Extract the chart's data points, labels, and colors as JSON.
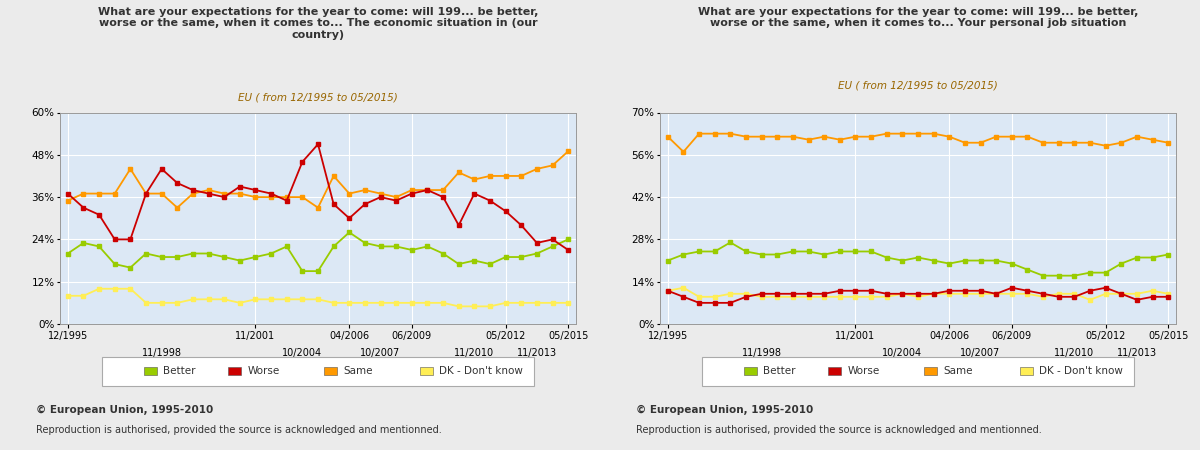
{
  "chart1": {
    "title": "What are your expectations for the year to come: will 199... be better,\nworse or the same, when it comes to... The economic situation in (our\ncountry)",
    "subtitle": "EU ( from 12/1995 to 05/2015)",
    "ylim": [
      0,
      0.6
    ],
    "yticks": [
      0,
      0.12,
      0.24,
      0.36,
      0.48,
      0.6
    ],
    "ytick_labels": [
      "0%",
      "12%",
      "24%",
      "36%",
      "48%",
      "60%"
    ],
    "xtick_positions": [
      0,
      6,
      12,
      18,
      21,
      24,
      27,
      29,
      31,
      33,
      38
    ],
    "xtick_labels": [
      "12/1995",
      "11/1998",
      "11/2001",
      "10/2004",
      "04/2006",
      "10/2007",
      "06/2009",
      "11/2010",
      "05/2012",
      "11/2013",
      "05/2015"
    ],
    "xtick2_positions": [
      3,
      9,
      15,
      19.5,
      22.5,
      25.5,
      28,
      30,
      32,
      35.5
    ],
    "xtick2_labels": [
      "11/1998",
      "10/2004",
      "10/2007",
      "11/2010",
      "11/2013",
      "",
      "",
      "",
      "",
      ""
    ],
    "better": [
      0.2,
      0.23,
      0.22,
      0.17,
      0.16,
      0.2,
      0.19,
      0.19,
      0.2,
      0.2,
      0.19,
      0.18,
      0.19,
      0.2,
      0.22,
      0.15,
      0.15,
      0.22,
      0.26,
      0.23,
      0.22,
      0.22,
      0.21,
      0.22,
      0.2,
      0.17,
      0.18,
      0.17,
      0.19,
      0.19,
      0.2,
      0.22,
      0.24
    ],
    "worse": [
      0.37,
      0.33,
      0.31,
      0.24,
      0.24,
      0.37,
      0.44,
      0.4,
      0.38,
      0.37,
      0.36,
      0.39,
      0.38,
      0.37,
      0.35,
      0.46,
      0.51,
      0.34,
      0.3,
      0.34,
      0.36,
      0.35,
      0.37,
      0.38,
      0.36,
      0.28,
      0.37,
      0.35,
      0.32,
      0.28,
      0.23,
      0.24,
      0.21
    ],
    "same": [
      0.35,
      0.37,
      0.37,
      0.37,
      0.44,
      0.37,
      0.37,
      0.33,
      0.37,
      0.38,
      0.37,
      0.37,
      0.36,
      0.36,
      0.36,
      0.36,
      0.33,
      0.42,
      0.37,
      0.38,
      0.37,
      0.36,
      0.38,
      0.38,
      0.38,
      0.43,
      0.41,
      0.42,
      0.42,
      0.42,
      0.44,
      0.45,
      0.49
    ],
    "dk": [
      0.08,
      0.08,
      0.1,
      0.1,
      0.1,
      0.06,
      0.06,
      0.06,
      0.07,
      0.07,
      0.07,
      0.06,
      0.07,
      0.07,
      0.07,
      0.07,
      0.07,
      0.06,
      0.06,
      0.06,
      0.06,
      0.06,
      0.06,
      0.06,
      0.06,
      0.05,
      0.05,
      0.05,
      0.06,
      0.06,
      0.06,
      0.06,
      0.06
    ]
  },
  "chart2": {
    "title": "What are your expectations for the year to come: will 199... be better,\nworse or the same, when it comes to... Your personal job situation",
    "subtitle": "EU ( from 12/1995 to 05/2015)",
    "ylim": [
      0,
      0.7
    ],
    "yticks": [
      0,
      0.14,
      0.28,
      0.42,
      0.56,
      0.7
    ],
    "ytick_labels": [
      "0%",
      "14%",
      "28%",
      "42%",
      "56%",
      "70%"
    ],
    "xtick_positions": [
      0,
      6,
      12,
      18,
      21,
      24,
      27,
      29,
      31,
      33,
      38
    ],
    "xtick_labels": [
      "12/1995",
      "11/1998",
      "11/2001",
      "10/2004",
      "04/2006",
      "10/2007",
      "06/2009",
      "11/2010",
      "05/2012",
      "11/2013",
      "05/2015"
    ],
    "better": [
      0.21,
      0.23,
      0.24,
      0.24,
      0.27,
      0.24,
      0.23,
      0.23,
      0.24,
      0.24,
      0.23,
      0.24,
      0.24,
      0.24,
      0.22,
      0.21,
      0.22,
      0.21,
      0.2,
      0.21,
      0.21,
      0.21,
      0.2,
      0.18,
      0.16,
      0.16,
      0.16,
      0.17,
      0.17,
      0.2,
      0.22,
      0.22,
      0.23
    ],
    "worse": [
      0.11,
      0.09,
      0.07,
      0.07,
      0.07,
      0.09,
      0.1,
      0.1,
      0.1,
      0.1,
      0.1,
      0.11,
      0.11,
      0.11,
      0.1,
      0.1,
      0.1,
      0.1,
      0.11,
      0.11,
      0.11,
      0.1,
      0.12,
      0.11,
      0.1,
      0.09,
      0.09,
      0.11,
      0.12,
      0.1,
      0.08,
      0.09,
      0.09
    ],
    "same": [
      0.62,
      0.57,
      0.63,
      0.63,
      0.63,
      0.62,
      0.62,
      0.62,
      0.62,
      0.61,
      0.62,
      0.61,
      0.62,
      0.62,
      0.63,
      0.63,
      0.63,
      0.63,
      0.62,
      0.6,
      0.6,
      0.62,
      0.62,
      0.62,
      0.6,
      0.6,
      0.6,
      0.6,
      0.59,
      0.6,
      0.62,
      0.61,
      0.6
    ],
    "dk": [
      0.11,
      0.12,
      0.09,
      0.09,
      0.1,
      0.1,
      0.09,
      0.09,
      0.09,
      0.09,
      0.09,
      0.09,
      0.09,
      0.09,
      0.09,
      0.1,
      0.09,
      0.1,
      0.1,
      0.1,
      0.1,
      0.1,
      0.1,
      0.1,
      0.09,
      0.1,
      0.1,
      0.08,
      0.1,
      0.1,
      0.1,
      0.11,
      0.1
    ]
  },
  "colors": {
    "better": "#99cc00",
    "worse": "#cc0000",
    "same": "#ff9900",
    "dk": "#ffee55"
  },
  "background_color": "#dce8f5",
  "outer_bg": "#ebebeb",
  "grid_color": "#ffffff",
  "copyright": "© European Union, 1995-2010",
  "reproduction": "Reproduction is authorised, provided the source is acknowledged and mentionned.",
  "legend_labels": [
    "Better",
    "Worse",
    "Same",
    "DK - Don't know"
  ]
}
